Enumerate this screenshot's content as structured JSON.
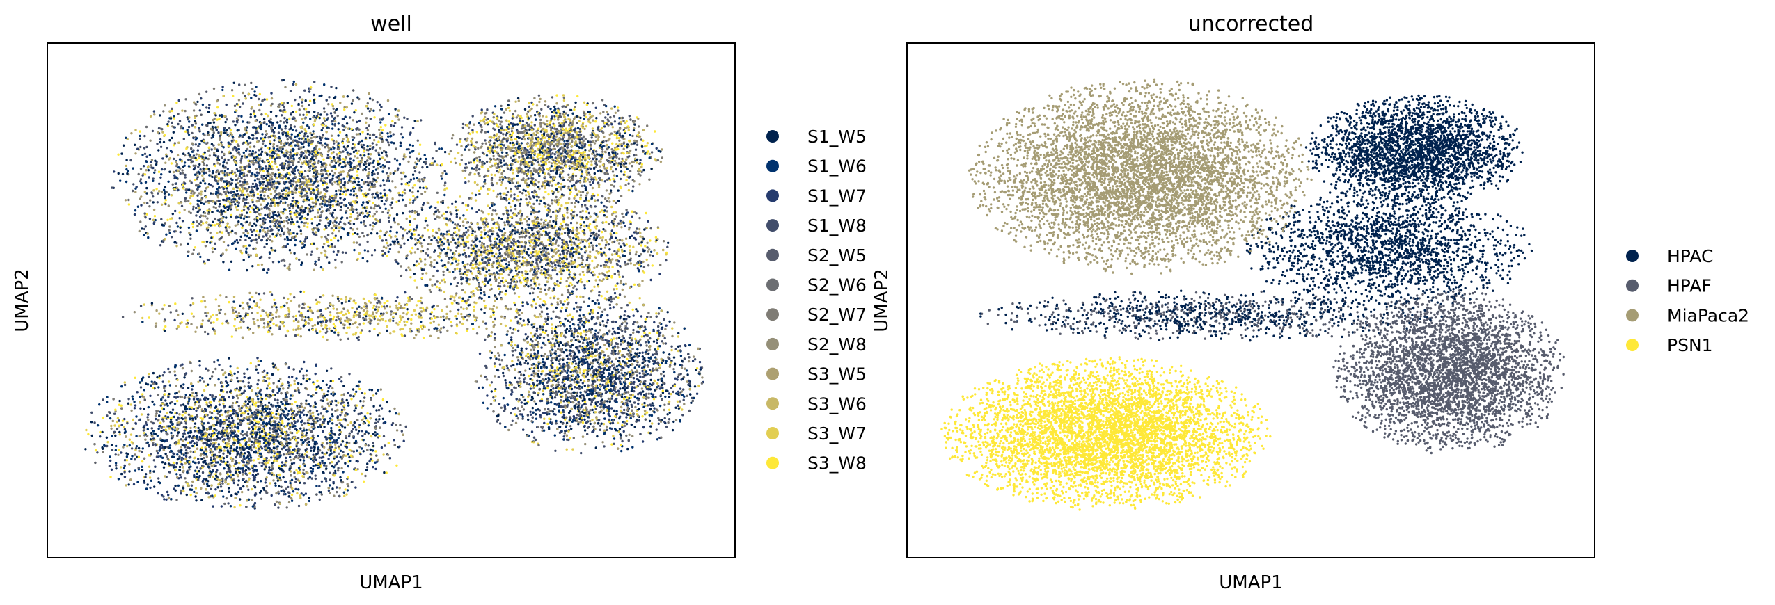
{
  "chart_data": [
    {
      "type": "scatter",
      "title": "well",
      "xlabel": "UMAP1",
      "ylabel": "UMAP2",
      "xlim": [
        0,
        100
      ],
      "ylim": [
        0,
        100
      ],
      "legend_position": "right",
      "series": [
        {
          "name": "S1_W5",
          "color": "#00224e"
        },
        {
          "name": "S1_W6",
          "color": "#00326e"
        },
        {
          "name": "S1_W7",
          "color": "#253b6e"
        },
        {
          "name": "S1_W8",
          "color": "#414d6b"
        },
        {
          "name": "S2_W5",
          "color": "#575c6d"
        },
        {
          "name": "S2_W6",
          "color": "#6c6e72"
        },
        {
          "name": "S2_W7",
          "color": "#7f7c75"
        },
        {
          "name": "S2_W8",
          "color": "#958f78"
        },
        {
          "name": "S3_W5",
          "color": "#ada071"
        },
        {
          "name": "S3_W6",
          "color": "#c8b866"
        },
        {
          "name": "S3_W7",
          "color": "#e2ce52"
        },
        {
          "name": "S3_W8",
          "color": "#fee838"
        }
      ]
    },
    {
      "type": "scatter",
      "title": "uncorrected",
      "xlabel": "UMAP1",
      "ylabel": "UMAP2",
      "xlim": [
        0,
        100
      ],
      "ylim": [
        0,
        100
      ],
      "legend_position": "right",
      "series": [
        {
          "name": "HPAC",
          "color": "#00224e"
        },
        {
          "name": "HPAF",
          "color": "#575c6d"
        },
        {
          "name": "MiaPaca2",
          "color": "#a59c74"
        },
        {
          "name": "PSN1",
          "color": "#fee838"
        }
      ]
    }
  ]
}
